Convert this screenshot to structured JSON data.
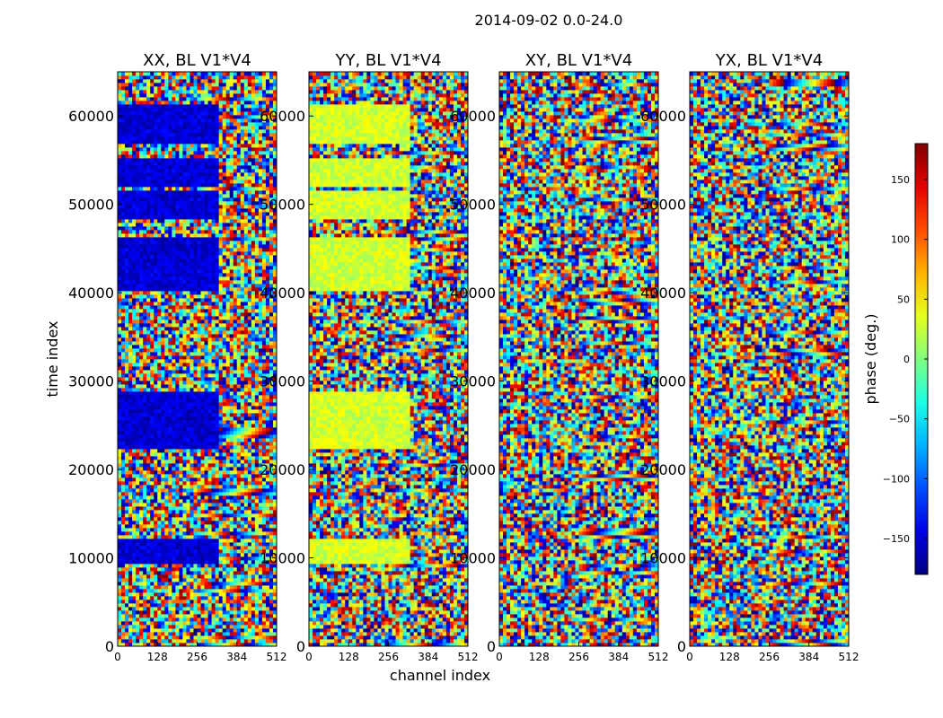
{
  "chart_data": {
    "type": "heatmap",
    "suptitle": "2014-09-02 0.0-24.0",
    "xlabel": "channel index",
    "ylabel": "time index",
    "xlim": [
      0,
      512
    ],
    "ylim": [
      0,
      65000
    ],
    "xticks": [
      0,
      128,
      256,
      384,
      512
    ],
    "yticks": [
      0,
      10000,
      20000,
      30000,
      40000,
      50000,
      60000
    ],
    "panels": [
      {
        "title": "XX, BL V1*V4",
        "base_phase": -150,
        "bands": [
          [
            9000,
            12000,
            0,
            320
          ],
          [
            22000,
            28500,
            0,
            320
          ],
          [
            40000,
            46000,
            0,
            320
          ],
          [
            48000,
            51500,
            0,
            320
          ],
          [
            52000,
            55000,
            0,
            320
          ],
          [
            56500,
            61000,
            0,
            320
          ]
        ]
      },
      {
        "title": "YY, BL V1*V4",
        "base_phase": 30,
        "bands": [
          [
            9000,
            12000,
            0,
            320
          ],
          [
            22000,
            28500,
            0,
            320
          ],
          [
            40000,
            46000,
            0,
            320
          ],
          [
            48000,
            51500,
            0,
            320
          ],
          [
            52000,
            55000,
            0,
            320
          ],
          [
            56500,
            61000,
            0,
            320
          ]
        ]
      },
      {
        "title": "XY, BL V1*V4",
        "base_phase": 0,
        "bands": []
      },
      {
        "title": "YX, BL V1*V4",
        "base_phase": 0,
        "bands": []
      }
    ],
    "colorbar": {
      "label": "phase (deg.)",
      "range": [
        -180,
        180
      ],
      "ticks": [
        -150,
        -100,
        -50,
        0,
        50,
        100,
        150
      ],
      "tick_labels": [
        "−150",
        "−100",
        "−50",
        "0",
        "50",
        "100",
        "150"
      ],
      "colormap": "jet"
    }
  }
}
